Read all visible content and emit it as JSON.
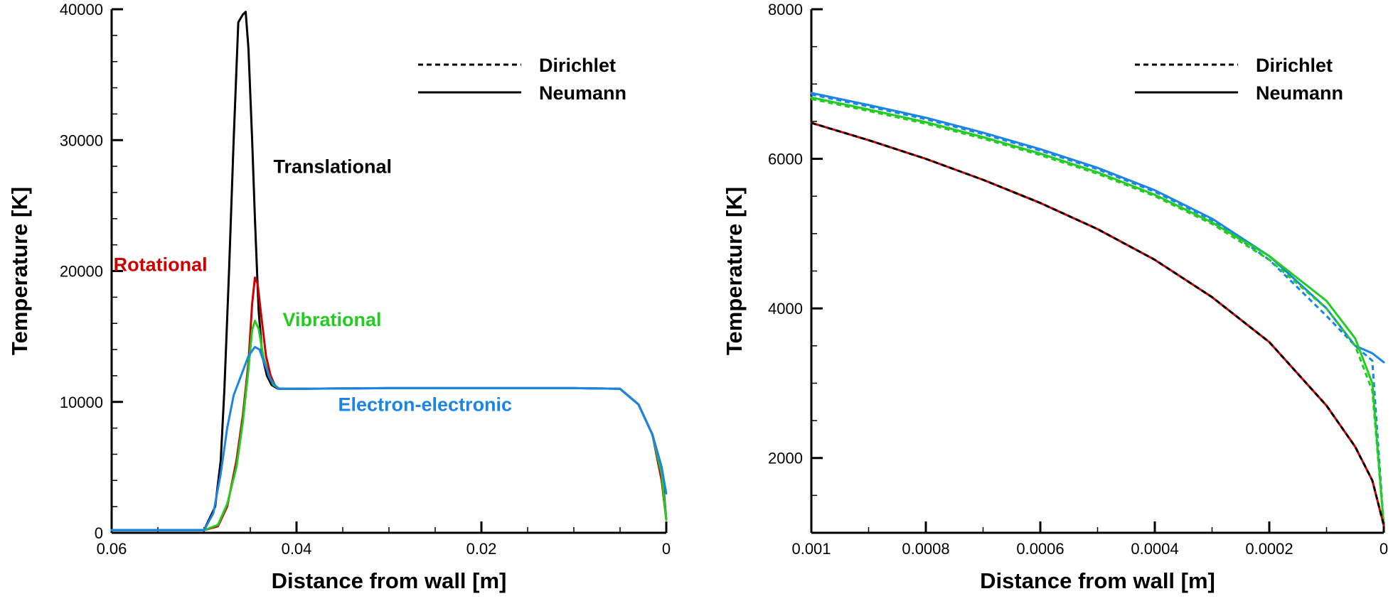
{
  "chart_data": [
    {
      "type": "line",
      "xlabel": "Distance from wall [m]",
      "ylabel": "Temperature [K]",
      "xlim": [
        0.06,
        0
      ],
      "ylim": [
        0,
        40000
      ],
      "x_ticks": [
        0.06,
        0.04,
        0.02,
        0
      ],
      "x_tick_labels": [
        "0.06",
        "0.04",
        "0.02",
        "0"
      ],
      "x_minor_step": 0.005,
      "y_ticks": [
        0,
        10000,
        20000,
        30000,
        40000
      ],
      "y_tick_labels": [
        "0",
        "10000",
        "20000",
        "30000",
        "40000"
      ],
      "y_minor_step": 2000,
      "legend": {
        "position": "top-right",
        "entries": [
          {
            "label": "Dirichlet",
            "style": "dashed"
          },
          {
            "label": "Neumann",
            "style": "solid"
          }
        ]
      },
      "annotations": [
        {
          "text": "Translational",
          "color": "#000000",
          "x": 0.0425,
          "y": 27500
        },
        {
          "text": "Rotational",
          "color": "#cc0000",
          "x": 0.0598,
          "y": 20000
        },
        {
          "text": "Vibrational",
          "color": "#22cc22",
          "x": 0.0415,
          "y": 15800
        },
        {
          "text": "Electron-electronic",
          "color": "#1a85e8",
          "x": 0.0355,
          "y": 9300
        }
      ],
      "series": [
        {
          "name": "Translational",
          "color": "#000000",
          "x": [
            0.06,
            0.05,
            0.0488,
            0.0482,
            0.0478,
            0.0473,
            0.0468,
            0.0463,
            0.0458,
            0.0455,
            0.0452,
            0.0448,
            0.0445,
            0.0441,
            0.0437,
            0.0432,
            0.0427,
            0.042,
            0.04,
            0.03,
            0.01,
            0.005,
            0.003,
            0.0015,
            0.0005,
            0
          ],
          "y": [
            200,
            200,
            2000,
            5500,
            11000,
            20000,
            30000,
            39000,
            39600,
            39800,
            37000,
            30000,
            24000,
            17000,
            13500,
            12000,
            11300,
            11000,
            11000,
            11050,
            11050,
            11000,
            9800,
            7500,
            5000,
            1000
          ]
        },
        {
          "name": "Rotational",
          "color": "#cc0000",
          "x": [
            0.06,
            0.05,
            0.0485,
            0.0475,
            0.0465,
            0.0458,
            0.0452,
            0.0448,
            0.0445,
            0.0442,
            0.0438,
            0.0433,
            0.0428,
            0.0423,
            0.0418,
            0.04,
            0.03,
            0.01,
            0.005,
            0.003,
            0.0015,
            0.0005,
            0
          ],
          "y": [
            200,
            200,
            500,
            2000,
            5500,
            9000,
            13000,
            17500,
            19500,
            19000,
            16500,
            13500,
            12000,
            11200,
            11000,
            11000,
            11050,
            11050,
            11000,
            9800,
            7500,
            4000,
            1000
          ]
        },
        {
          "name": "Vibrational",
          "color": "#22cc22",
          "x": [
            0.06,
            0.05,
            0.0485,
            0.0475,
            0.0465,
            0.0458,
            0.0452,
            0.0448,
            0.0445,
            0.0441,
            0.0436,
            0.043,
            0.0425,
            0.0418,
            0.04,
            0.03,
            0.01,
            0.005,
            0.003,
            0.0015,
            0.0005,
            0
          ],
          "y": [
            200,
            200,
            600,
            2200,
            5000,
            8500,
            12500,
            15500,
            16200,
            15600,
            13500,
            12000,
            11300,
            11000,
            11000,
            11050,
            11050,
            11000,
            9800,
            7500,
            4500,
            1000
          ]
        },
        {
          "name": "Electron-electronic",
          "color": "#1a85e8",
          "x": [
            0.06,
            0.05,
            0.049,
            0.0482,
            0.0475,
            0.0468,
            0.046,
            0.0452,
            0.0445,
            0.044,
            0.0435,
            0.0428,
            0.042,
            0.04,
            0.03,
            0.01,
            0.005,
            0.003,
            0.0015,
            0.0005,
            0
          ],
          "y": [
            200,
            200,
            1500,
            4500,
            8000,
            10500,
            12000,
            13500,
            14200,
            14000,
            13000,
            11700,
            11000,
            11000,
            11050,
            11050,
            11000,
            9800,
            7500,
            5000,
            3000
          ]
        }
      ]
    },
    {
      "type": "line",
      "xlabel": "Distance from wall [m]",
      "ylabel": "Temperature [K]",
      "xlim": [
        0.001,
        0
      ],
      "ylim": [
        1000,
        8000
      ],
      "x_ticks": [
        0.001,
        0.0008,
        0.0006,
        0.0004,
        0.0002,
        0
      ],
      "x_tick_labels": [
        "0.001",
        "0.0008",
        "0.0006",
        "0.0004",
        "0.0002",
        "0"
      ],
      "x_minor_step": 0.0001,
      "y_ticks": [
        2000,
        4000,
        6000,
        8000
      ],
      "y_tick_labels": [
        "2000",
        "4000",
        "6000",
        "8000"
      ],
      "y_minor_step": 500,
      "legend": {
        "position": "top-right",
        "entries": [
          {
            "label": "Dirichlet",
            "style": "dashed"
          },
          {
            "label": "Neumann",
            "style": "solid"
          }
        ]
      },
      "series": [
        {
          "name": "Electron-electronic Neumann",
          "color": "#1a85e8",
          "style": "solid",
          "x": [
            0.001,
            0.0009,
            0.0008,
            0.0007,
            0.0006,
            0.0005,
            0.0004,
            0.0003,
            0.0002,
            0.0001,
            5e-05,
            2e-05,
            0
          ],
          "y": [
            6880,
            6720,
            6550,
            6350,
            6130,
            5880,
            5580,
            5200,
            4700,
            4000,
            3500,
            3400,
            3280
          ]
        },
        {
          "name": "Electron-electronic Dirichlet",
          "color": "#1a85e8",
          "style": "dashed",
          "x": [
            0.001,
            0.0009,
            0.0008,
            0.0007,
            0.0006,
            0.0005,
            0.0004,
            0.0003,
            0.0002,
            0.0001,
            5e-05,
            2e-05,
            0
          ],
          "y": [
            6860,
            6700,
            6530,
            6330,
            6110,
            5860,
            5560,
            5180,
            4650,
            3900,
            3500,
            3300,
            1100
          ]
        },
        {
          "name": "Vibrational Neumann",
          "color": "#22cc22",
          "style": "solid",
          "x": [
            0.001,
            0.0009,
            0.0008,
            0.0007,
            0.0006,
            0.0005,
            0.0004,
            0.0003,
            0.0002,
            0.0001,
            5e-05,
            2e-05,
            0
          ],
          "y": [
            6820,
            6660,
            6490,
            6290,
            6070,
            5820,
            5520,
            5150,
            4700,
            4100,
            3600,
            3000,
            1100
          ]
        },
        {
          "name": "Vibrational Dirichlet",
          "color": "#22cc22",
          "style": "dashed",
          "x": [
            0.001,
            0.0009,
            0.0008,
            0.0007,
            0.0006,
            0.0005,
            0.0004,
            0.0003,
            0.0002,
            0.0001,
            5e-05,
            2e-05,
            0
          ],
          "y": [
            6800,
            6640,
            6470,
            6270,
            6050,
            5800,
            5500,
            5130,
            4650,
            4000,
            3500,
            2900,
            1100
          ]
        },
        {
          "name": "Translational/Rotational Neumann",
          "color": "#cc0000",
          "style": "solid",
          "x": [
            0.001,
            0.0009,
            0.0008,
            0.0007,
            0.0006,
            0.0005,
            0.0004,
            0.0003,
            0.0002,
            0.0001,
            5e-05,
            2e-05,
            0
          ],
          "y": [
            6480,
            6250,
            6000,
            5720,
            5410,
            5060,
            4650,
            4150,
            3550,
            2700,
            2150,
            1700,
            1100
          ]
        },
        {
          "name": "Translational/Rotational Dirichlet",
          "color": "#000000",
          "style": "dashed",
          "x": [
            0.001,
            0.0009,
            0.0008,
            0.0007,
            0.0006,
            0.0005,
            0.0004,
            0.0003,
            0.0002,
            0.0001,
            5e-05,
            2e-05,
            0
          ],
          "y": [
            6480,
            6250,
            6000,
            5720,
            5410,
            5060,
            4650,
            4150,
            3550,
            2700,
            2150,
            1700,
            1100
          ]
        }
      ]
    }
  ]
}
